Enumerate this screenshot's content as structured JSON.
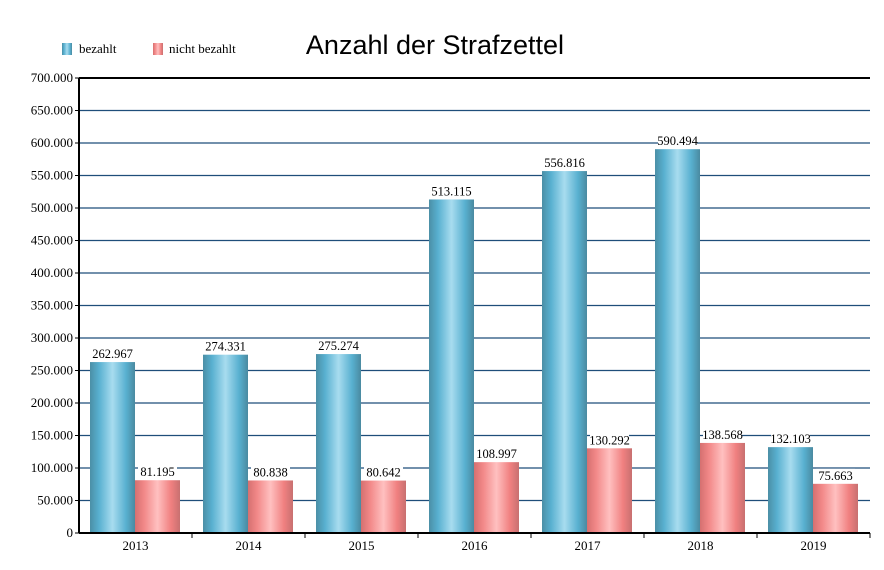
{
  "chart_data": {
    "type": "bar",
    "title": "Anzahl der Strafzettel",
    "xlabel": "",
    "ylabel": "",
    "categories": [
      "2013",
      "2014",
      "2015",
      "2016",
      "2017",
      "2018",
      "2019"
    ],
    "series": [
      {
        "name": "bezahlt",
        "color": "#4fa8c8",
        "values": [
          262967,
          274331,
          275274,
          513115,
          556816,
          590494,
          132103
        ],
        "labels": [
          "262.967",
          "274.331",
          "275.274",
          "513.115",
          "556.816",
          "590.494",
          "132.103"
        ]
      },
      {
        "name": "nicht bezahlt",
        "color": "#f08080",
        "values": [
          81195,
          80838,
          80642,
          108997,
          130292,
          138568,
          75663
        ],
        "labels": [
          "81.195",
          "80.838",
          "80.642",
          "108.997",
          "130.292",
          "138.568",
          "75.663"
        ]
      }
    ],
    "ylim": [
      0,
      700000
    ],
    "yticks": [
      0,
      50000,
      100000,
      150000,
      200000,
      250000,
      300000,
      350000,
      400000,
      450000,
      500000,
      550000,
      600000,
      650000,
      700000
    ],
    "ytick_labels": [
      "0",
      "50.000",
      "100.000",
      "150.000",
      "200.000",
      "250.000",
      "300.000",
      "350.000",
      "400.000",
      "450.000",
      "500.000",
      "550.000",
      "600.000",
      "650.000",
      "700.000"
    ],
    "grid": true,
    "legend": "top-left"
  }
}
